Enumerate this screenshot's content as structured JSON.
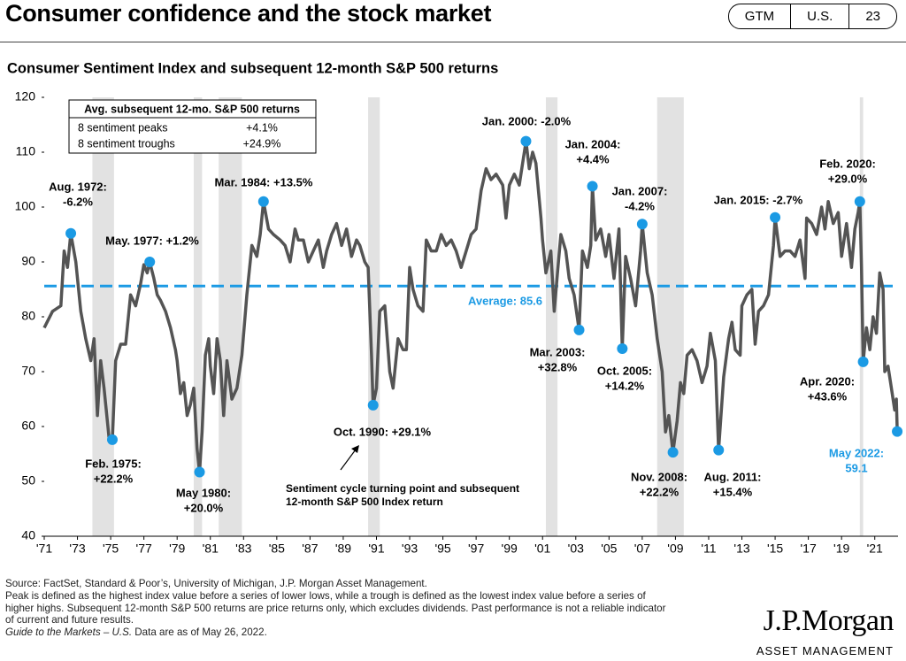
{
  "header": {
    "title": "Consumer confidence and the stock market",
    "tabs": [
      "GTM",
      "U.S.",
      "23"
    ]
  },
  "chart_data": {
    "type": "line",
    "title": "Consumer Sentiment Index and subsequent 12-month S&P 500 returns",
    "color": "#545454",
    "x": [
      1971.0,
      1971.5,
      1972.0,
      1972.2,
      1972.4,
      1972.6,
      1972.9,
      1973.2,
      1973.5,
      1973.8,
      1974.0,
      1974.2,
      1974.4,
      1974.6,
      1974.9,
      1975.1,
      1975.3,
      1975.6,
      1975.9,
      1976.2,
      1976.5,
      1976.8,
      1977.0,
      1977.2,
      1977.35,
      1977.6,
      1977.8,
      1978.0,
      1978.3,
      1978.6,
      1978.9,
      1979.0,
      1979.2,
      1979.4,
      1979.6,
      1979.8,
      1980.0,
      1980.2,
      1980.35,
      1980.5,
      1980.7,
      1980.9,
      1981.0,
      1981.2,
      1981.4,
      1981.6,
      1981.8,
      1982.0,
      1982.3,
      1982.6,
      1982.9,
      1983.2,
      1983.5,
      1983.8,
      1984.0,
      1984.2,
      1984.5,
      1984.8,
      1985.2,
      1985.5,
      1985.8,
      1986.1,
      1986.3,
      1986.6,
      1986.9,
      1987.2,
      1987.5,
      1987.8,
      1988.0,
      1988.3,
      1988.6,
      1988.9,
      1989.2,
      1989.5,
      1989.8,
      1990.0,
      1990.3,
      1990.5,
      1990.7,
      1990.8,
      1991.0,
      1991.2,
      1991.5,
      1991.8,
      1992.0,
      1992.3,
      1992.6,
      1992.8,
      1993.0,
      1993.2,
      1993.5,
      1993.8,
      1994.0,
      1994.3,
      1994.6,
      1994.9,
      1995.2,
      1995.5,
      1995.8,
      1996.1,
      1996.4,
      1996.7,
      1997.0,
      1997.3,
      1997.6,
      1997.9,
      1998.2,
      1998.6,
      1998.8,
      1999.0,
      1999.3,
      1999.6,
      1999.8,
      2000.0,
      2000.2,
      2000.4,
      2000.6,
      2000.9,
      2001.0,
      2001.2,
      2001.5,
      2001.7,
      2001.9,
      2002.1,
      2002.4,
      2002.6,
      2002.9,
      2003.2,
      2003.4,
      2003.7,
      2003.9,
      2004.0,
      2004.2,
      2004.5,
      2004.8,
      2005.0,
      2005.3,
      2005.6,
      2005.8,
      2006.0,
      2006.3,
      2006.6,
      2006.9,
      2007.0,
      2007.3,
      2007.6,
      2007.9,
      2008.2,
      2008.4,
      2008.6,
      2008.85,
      2009.1,
      2009.3,
      2009.5,
      2009.7,
      2010.0,
      2010.3,
      2010.6,
      2010.9,
      2011.1,
      2011.4,
      2011.6,
      2011.9,
      2012.2,
      2012.4,
      2012.6,
      2012.9,
      2013.0,
      2013.3,
      2013.6,
      2013.8,
      2014.0,
      2014.3,
      2014.6,
      2014.9,
      2015.0,
      2015.3,
      2015.6,
      2015.9,
      2016.2,
      2016.5,
      2016.8,
      2016.9,
      2017.2,
      2017.5,
      2017.8,
      2018.0,
      2018.2,
      2018.5,
      2018.8,
      2019.0,
      2019.3,
      2019.6,
      2019.8,
      2020.0,
      2020.1,
      2020.2,
      2020.3,
      2020.5,
      2020.7,
      2020.9,
      2021.1,
      2021.3,
      2021.5,
      2021.6,
      2021.8,
      2022.0,
      2022.2,
      2022.3,
      2022.35
    ],
    "values": [
      78,
      81,
      82,
      92,
      89,
      95.2,
      90,
      81,
      76,
      72,
      76,
      62,
      72,
      67,
      58,
      57.6,
      72,
      75,
      75,
      84,
      82,
      86,
      89.5,
      88,
      90,
      87,
      84,
      83,
      81,
      78,
      74,
      72,
      66,
      68,
      62,
      64,
      67,
      56,
      51.7,
      59,
      73,
      76,
      71,
      66,
      76,
      72,
      62,
      72,
      65,
      67,
      73,
      84,
      93,
      91,
      95,
      101,
      96,
      95,
      94,
      93,
      90,
      96,
      94,
      94,
      90,
      92,
      94,
      89,
      92,
      95,
      97,
      93,
      96,
      91,
      94,
      93,
      90,
      89,
      73,
      63.9,
      67,
      81,
      82,
      70,
      67,
      76,
      74,
      74,
      89,
      85,
      82,
      81,
      94,
      92,
      92,
      95,
      93,
      94,
      92,
      89,
      92,
      95,
      96,
      103,
      107,
      105,
      106,
      104,
      98,
      104,
      106,
      104,
      108,
      112,
      107,
      110,
      108,
      98,
      94,
      88,
      92,
      81,
      88,
      95,
      92,
      87,
      84,
      77.6,
      92,
      89,
      93,
      103.8,
      94,
      96,
      91,
      95,
      87,
      96,
      74.2,
      91,
      87,
      82,
      92,
      96.9,
      88,
      84,
      76,
      70,
      59,
      62,
      55.3,
      61,
      68,
      66,
      73,
      74,
      72,
      68,
      71,
      77,
      72,
      55.7,
      69,
      76,
      79,
      74,
      73,
      82,
      84,
      85,
      75,
      81,
      82,
      84,
      93,
      98.1,
      91,
      92,
      92,
      91,
      94,
      87,
      98,
      97,
      95,
      100,
      96,
      101,
      97,
      99,
      91,
      97,
      89,
      96,
      99,
      101,
      89,
      71.8,
      78,
      74,
      80,
      77,
      88,
      85,
      70,
      71,
      67,
      63,
      65,
      59.1
    ],
    "xlim": [
      1971,
      2022.4
    ],
    "ylim": [
      40,
      120
    ],
    "yticks": [
      40,
      50,
      60,
      70,
      80,
      90,
      100,
      110,
      120
    ],
    "xticks": [
      {
        "value": 1971,
        "label": "'71"
      },
      {
        "value": 1973,
        "label": "'73"
      },
      {
        "value": 1975,
        "label": "'75"
      },
      {
        "value": 1977,
        "label": "'77"
      },
      {
        "value": 1979,
        "label": "'79"
      },
      {
        "value": 1981,
        "label": "'81"
      },
      {
        "value": 1983,
        "label": "'83"
      },
      {
        "value": 1985,
        "label": "'85"
      },
      {
        "value": 1987,
        "label": "'87"
      },
      {
        "value": 1989,
        "label": "'89"
      },
      {
        "value": 1991,
        "label": "'91"
      },
      {
        "value": 1993,
        "label": "'93"
      },
      {
        "value": 1995,
        "label": "'95"
      },
      {
        "value": 1997,
        "label": "'97"
      },
      {
        "value": 1999,
        "label": "'99"
      },
      {
        "value": 2001,
        "label": "'01"
      },
      {
        "value": 2003,
        "label": "'03"
      },
      {
        "value": 2005,
        "label": "'05"
      },
      {
        "value": 2007,
        "label": "'07"
      },
      {
        "value": 2009,
        "label": "'09"
      },
      {
        "value": 2011,
        "label": "'11"
      },
      {
        "value": 2013,
        "label": "'13"
      },
      {
        "value": 2015,
        "label": "'15"
      },
      {
        "value": 2017,
        "label": "'17"
      },
      {
        "value": 2019,
        "label": "'19"
      },
      {
        "value": 2021,
        "label": "'21"
      }
    ],
    "recessions": [
      [
        1973.9,
        1975.2
      ],
      [
        1980.0,
        1980.5
      ],
      [
        1981.5,
        1982.9
      ],
      [
        1990.5,
        1991.2
      ],
      [
        2001.2,
        2001.9
      ],
      [
        2007.9,
        2009.5
      ],
      [
        2020.1,
        2020.3
      ]
    ],
    "recession_color": "#e2e2e2",
    "average": {
      "value": 85.6,
      "label": "Average: 85.6",
      "color": "#1b9ae4"
    },
    "markers": [
      {
        "x": 1972.6,
        "value": 95.2,
        "label": [
          "Aug. 1972:",
          "-6.2%"
        ]
      },
      {
        "x": 1975.1,
        "value": 57.6,
        "label": [
          "Feb. 1975:",
          "+22.2%"
        ]
      },
      {
        "x": 1977.35,
        "value": 90,
        "label": [
          "May. 1977: +1.2%"
        ]
      },
      {
        "x": 1980.35,
        "value": 51.7,
        "label": [
          "May 1980:",
          "+20.0%"
        ]
      },
      {
        "x": 1984.2,
        "value": 101,
        "label": [
          "Mar. 1984: +13.5%"
        ]
      },
      {
        "x": 1990.8,
        "value": 63.9,
        "label": [
          "Oct. 1990: +29.1%"
        ]
      },
      {
        "x": 2000.0,
        "value": 112,
        "label": [
          "Jan. 2000: -2.0%"
        ]
      },
      {
        "x": 2003.2,
        "value": 77.6,
        "label": [
          "Mar. 2003:",
          "+32.8%"
        ]
      },
      {
        "x": 2004.0,
        "value": 103.8,
        "label": [
          "Jan. 2004:",
          "+4.4%"
        ]
      },
      {
        "x": 2005.8,
        "value": 74.2,
        "label": [
          "Oct. 2005:",
          "+14.2%"
        ]
      },
      {
        "x": 2007.0,
        "value": 96.9,
        "label": [
          "Jan. 2007:",
          "-4.2%"
        ]
      },
      {
        "x": 2008.85,
        "value": 55.3,
        "label": [
          "Nov. 2008:",
          "+22.2%"
        ]
      },
      {
        "x": 2011.6,
        "value": 55.7,
        "label": [
          "Aug. 2011:",
          "+15.4%"
        ]
      },
      {
        "x": 2015.0,
        "value": 98.1,
        "label": [
          "Jan. 2015: -2.7%"
        ]
      },
      {
        "x": 2020.1,
        "value": 101,
        "label": [
          "Feb. 2020:",
          "+29.0%"
        ]
      },
      {
        "x": 2020.3,
        "value": 71.8,
        "label": [
          "Apr. 2020:",
          "+43.6%"
        ]
      },
      {
        "x": 2022.35,
        "value": 59.1,
        "label": [
          "May 2022:",
          "59.1"
        ],
        "color": "#1b9ae4"
      }
    ],
    "marker_color": "#1b9ae4",
    "inset_table": {
      "header": "Avg. subsequent 12-mo. S&P 500 returns",
      "rows": [
        [
          "8 sentiment peaks",
          "+4.1%"
        ],
        [
          "8 sentiment troughs",
          "+24.9%"
        ]
      ]
    },
    "annotation": [
      "Sentiment cycle turning point and subsequent",
      "12-month S&P 500 Index return"
    ]
  },
  "footer": {
    "lines": [
      "Source: FactSet, Standard & Poor’s, University of Michigan, J.P. Morgan Asset Management.",
      "Peak is defined as the highest index value before a series of lower lows, while a trough is defined as the lowest index value before a series of",
      "higher highs. Subsequent 12-month S&P 500 returns are price returns only, which excludes dividends. Past performance is not a reliable indicator",
      "of current and future results."
    ],
    "guide": "Guide to the Markets – U.S.",
    "date": " Data are as of May 26, 2022.",
    "logo": "J.P.Morgan",
    "logo_sub": "ASSET MANAGEMENT"
  }
}
